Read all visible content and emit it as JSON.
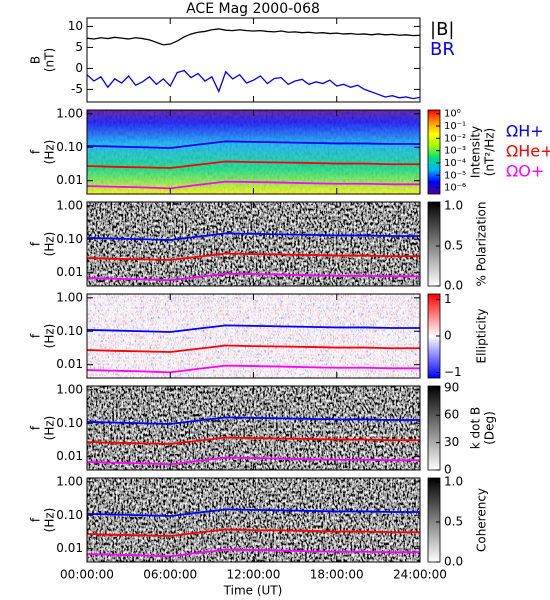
{
  "chart_data": [
    {
      "type": "line",
      "title": "ACE Mag 2000-068",
      "ylabel": "B",
      "ylabel_unit": "(nT)",
      "x": [
        0,
        0.5,
        1,
        1.5,
        2,
        2.5,
        3,
        3.5,
        4,
        4.5,
        5,
        5.5,
        6,
        6.5,
        7,
        7.5,
        8,
        8.5,
        9,
        9.5,
        10,
        10.5,
        11,
        11.5,
        12,
        12.5,
        13,
        13.5,
        14,
        14.5,
        15,
        15.5,
        16,
        16.5,
        17,
        17.5,
        18,
        18.5,
        19,
        19.5,
        20,
        20.5,
        21,
        21.5,
        22,
        22.5,
        23,
        23.5,
        24
      ],
      "series": [
        {
          "name": "|B|",
          "color": "#000000",
          "values": [
            7.2,
            7.0,
            7.3,
            7.1,
            7.4,
            7.2,
            7.0,
            7.3,
            7.1,
            6.8,
            6.2,
            5.6,
            5.8,
            6.5,
            7.5,
            8.2,
            8.6,
            8.8,
            9.2,
            9.4,
            9.1,
            9.0,
            9.2,
            9.0,
            8.9,
            9.0,
            8.8,
            8.7,
            8.9,
            8.6,
            8.7,
            8.5,
            8.6,
            8.4,
            8.5,
            8.3,
            8.4,
            8.2,
            8.3,
            8.1,
            8.2,
            8.0,
            8.2,
            8.0,
            8.1,
            7.9,
            8.0,
            7.8,
            7.9
          ]
        },
        {
          "name": "BR",
          "color": "#0000ff",
          "values": [
            -1.5,
            -3.0,
            -2.0,
            -4.5,
            -2.5,
            -3.5,
            -1.8,
            -4.0,
            -3.2,
            -2.0,
            -3.8,
            -2.5,
            -4.2,
            -1.0,
            -0.5,
            -2.2,
            -1.2,
            -3.0,
            -2.0,
            -5.5,
            -0.8,
            -2.5,
            -1.5,
            -3.5,
            -2.8,
            -1.8,
            -3.6,
            -2.4,
            -2.2,
            -3.8,
            -3.0,
            -2.6,
            -3.8,
            -3.2,
            -3.6,
            -2.8,
            -4.2,
            -3.8,
            -4.5,
            -4.0,
            -5.0,
            -5.6,
            -6.2,
            -6.8,
            -6.5,
            -7.0,
            -6.8,
            -7.2,
            -6.9
          ]
        }
      ],
      "xlim": [
        0,
        24
      ],
      "xticks": [
        0,
        6,
        12,
        18,
        24
      ],
      "ylim": [
        -8,
        12
      ],
      "yticks": [
        -5,
        0,
        5,
        10
      ]
    },
    {
      "type": "spectrogram",
      "ylabel": "f",
      "ylabel_unit": "(Hz)",
      "log_y": true,
      "texture": "intensity",
      "x": [
        0,
        2,
        4,
        6,
        8,
        10,
        12,
        14,
        16,
        18,
        20,
        22,
        24
      ],
      "series": [
        {
          "name": "ΩH+",
          "color": "#0000ff",
          "values": [
            0.11,
            0.105,
            0.1,
            0.095,
            0.12,
            0.15,
            0.145,
            0.14,
            0.135,
            0.13,
            0.13,
            0.125,
            0.125
          ]
        },
        {
          "name": "ΩHe+",
          "color": "#ff0000",
          "values": [
            0.0275,
            0.026,
            0.025,
            0.024,
            0.03,
            0.0375,
            0.036,
            0.035,
            0.034,
            0.0325,
            0.0325,
            0.031,
            0.031
          ]
        },
        {
          "name": "ΩO+",
          "color": "#ff00ff",
          "values": [
            0.0069,
            0.0066,
            0.0063,
            0.0059,
            0.0075,
            0.0094,
            0.0091,
            0.0088,
            0.0084,
            0.0081,
            0.0081,
            0.0078,
            0.0078
          ]
        }
      ],
      "xlim": [
        0,
        24
      ],
      "xticks": [
        0,
        6,
        12,
        18,
        24
      ],
      "ylim": [
        0.004,
        1.3
      ],
      "yticks": [
        {
          "value": 0.01,
          "label": "0.01"
        },
        {
          "value": 0.1,
          "label": "0.10"
        },
        {
          "value": 1,
          "label": "1.00"
        }
      ],
      "colorbar": {
        "label": "Intensity",
        "label_unit": "(nT²/Hz)",
        "log": true,
        "lim": [
          3e-07,
          2
        ],
        "colors": [
          "#50009a",
          "#0000ff",
          "#00b0ff",
          "#00e080",
          "#a0ff00",
          "#ffff00",
          "#ff9000",
          "#ff0000"
        ],
        "ticks": [
          {
            "value": 1,
            "label": "10⁰"
          },
          {
            "value": 0.1,
            "label": "10⁻¹"
          },
          {
            "value": 0.01,
            "label": "10⁻²"
          },
          {
            "value": 0.001,
            "label": "10⁻³"
          },
          {
            "value": 0.0001,
            "label": "10⁻⁴"
          },
          {
            "value": 1e-05,
            "label": "10⁻⁵"
          },
          {
            "value": 1e-06,
            "label": "10⁻⁶"
          }
        ]
      }
    },
    {
      "type": "spectrogram",
      "ylabel": "f",
      "ylabel_unit": "(Hz)",
      "log_y": true,
      "texture": "gray",
      "x": [
        0,
        2,
        4,
        6,
        8,
        10,
        12,
        14,
        16,
        18,
        20,
        22,
        24
      ],
      "series": [
        {
          "color": "#0000ff",
          "values": [
            0.11,
            0.105,
            0.1,
            0.095,
            0.12,
            0.15,
            0.145,
            0.14,
            0.135,
            0.13,
            0.13,
            0.125,
            0.125
          ]
        },
        {
          "color": "#ff0000",
          "values": [
            0.0275,
            0.026,
            0.025,
            0.024,
            0.03,
            0.0375,
            0.036,
            0.035,
            0.034,
            0.0325,
            0.0325,
            0.031,
            0.031
          ]
        },
        {
          "color": "#ff00ff",
          "values": [
            0.0069,
            0.0066,
            0.0063,
            0.0059,
            0.0075,
            0.0094,
            0.0091,
            0.0088,
            0.0084,
            0.0081,
            0.0081,
            0.0078,
            0.0078
          ]
        }
      ],
      "xlim": [
        0,
        24
      ],
      "xticks": [
        0,
        6,
        12,
        18,
        24
      ],
      "ylim": [
        0.004,
        1.3
      ],
      "yticks": [
        {
          "value": 0.01,
          "label": "0.01"
        },
        {
          "value": 0.1,
          "label": "0.10"
        },
        {
          "value": 1,
          "label": "1.00"
        }
      ],
      "colorbar": {
        "label": "% Polarization",
        "lim": [
          0,
          1.05
        ],
        "colors": [
          "#ffffff",
          "#000000"
        ],
        "ticks": [
          {
            "value": 0,
            "label": "0.0"
          },
          {
            "value": 0.5,
            "label": "0.5"
          },
          {
            "value": 1,
            "label": "1.0"
          }
        ]
      }
    },
    {
      "type": "spectrogram",
      "ylabel": "f",
      "ylabel_unit": "(Hz)",
      "log_y": true,
      "texture": "redblue",
      "x": [
        0,
        2,
        4,
        6,
        8,
        10,
        12,
        14,
        16,
        18,
        20,
        22,
        24
      ],
      "series": [
        {
          "color": "#0000ff",
          "values": [
            0.11,
            0.105,
            0.1,
            0.095,
            0.12,
            0.15,
            0.145,
            0.14,
            0.135,
            0.13,
            0.13,
            0.125,
            0.125
          ]
        },
        {
          "color": "#ff0000",
          "values": [
            0.0275,
            0.026,
            0.025,
            0.024,
            0.03,
            0.0375,
            0.036,
            0.035,
            0.034,
            0.0325,
            0.0325,
            0.031,
            0.031
          ]
        },
        {
          "color": "#ff00ff",
          "values": [
            0.0069,
            0.0066,
            0.0063,
            0.0059,
            0.0075,
            0.0094,
            0.0091,
            0.0088,
            0.0084,
            0.0081,
            0.0081,
            0.0078,
            0.0078
          ]
        }
      ],
      "xlim": [
        0,
        24
      ],
      "xticks": [
        0,
        6,
        12,
        18,
        24
      ],
      "ylim": [
        0.004,
        1.3
      ],
      "yticks": [
        {
          "value": 0.01,
          "label": "0.01"
        },
        {
          "value": 0.1,
          "label": "0.10"
        },
        {
          "value": 1,
          "label": "1.00"
        }
      ],
      "colorbar": {
        "label": "Ellipticity",
        "lim": [
          -1.15,
          1.15
        ],
        "colors": [
          "#0000ff",
          "#ffffff",
          "#ff0000"
        ],
        "ticks": [
          {
            "value": -1,
            "label": "−1"
          },
          0,
          1
        ]
      }
    },
    {
      "type": "spectrogram",
      "ylabel": "f",
      "ylabel_unit": "(Hz)",
      "log_y": true,
      "texture": "gray",
      "x": [
        0,
        2,
        4,
        6,
        8,
        10,
        12,
        14,
        16,
        18,
        20,
        22,
        24
      ],
      "series": [
        {
          "color": "#0000ff",
          "values": [
            0.11,
            0.105,
            0.1,
            0.095,
            0.12,
            0.15,
            0.145,
            0.14,
            0.135,
            0.13,
            0.13,
            0.125,
            0.125
          ]
        },
        {
          "color": "#ff0000",
          "values": [
            0.0275,
            0.026,
            0.025,
            0.024,
            0.03,
            0.0375,
            0.036,
            0.035,
            0.034,
            0.0325,
            0.0325,
            0.031,
            0.031
          ]
        },
        {
          "color": "#ff00ff",
          "values": [
            0.0069,
            0.0066,
            0.0063,
            0.0059,
            0.0075,
            0.0094,
            0.0091,
            0.0088,
            0.0084,
            0.0081,
            0.0081,
            0.0078,
            0.0078
          ]
        }
      ],
      "xlim": [
        0,
        24
      ],
      "xticks": [
        0,
        6,
        12,
        18,
        24
      ],
      "ylim": [
        0.004,
        1.3
      ],
      "yticks": [
        {
          "value": 0.01,
          "label": "0.01"
        },
        {
          "value": 0.1,
          "label": "0.10"
        },
        {
          "value": 1,
          "label": "1.00"
        }
      ],
      "colorbar": {
        "label": "k dot B",
        "label_unit": "(Deg)",
        "lim": [
          0,
          92
        ],
        "colors": [
          "#ffffff",
          "#000000"
        ],
        "ticks": [
          0,
          30,
          60,
          90
        ]
      }
    },
    {
      "type": "spectrogram",
      "ylabel": "f",
      "ylabel_unit": "(Hz)",
      "log_y": true,
      "texture": "gray",
      "x": [
        0,
        2,
        4,
        6,
        8,
        10,
        12,
        14,
        16,
        18,
        20,
        22,
        24
      ],
      "series": [
        {
          "color": "#0000ff",
          "values": [
            0.11,
            0.105,
            0.1,
            0.095,
            0.12,
            0.15,
            0.145,
            0.14,
            0.135,
            0.13,
            0.13,
            0.125,
            0.125
          ]
        },
        {
          "color": "#ff0000",
          "values": [
            0.0275,
            0.026,
            0.025,
            0.024,
            0.03,
            0.0375,
            0.036,
            0.035,
            0.034,
            0.0325,
            0.0325,
            0.031,
            0.031
          ]
        },
        {
          "color": "#ff00ff",
          "values": [
            0.0069,
            0.0066,
            0.0063,
            0.0059,
            0.0075,
            0.0094,
            0.0091,
            0.0088,
            0.0084,
            0.0081,
            0.0081,
            0.0078,
            0.0078
          ]
        }
      ],
      "xlim": [
        0,
        24
      ],
      "xlabel": "Time (UT)",
      "xticks": [
        {
          "value": 0,
          "label": "00:00:00"
        },
        {
          "value": 6,
          "label": "06:00:00"
        },
        {
          "value": 12,
          "label": "12:00:00"
        },
        {
          "value": 18,
          "label": "18:00:00"
        },
        {
          "value": 24,
          "label": "24:00:00"
        }
      ],
      "ylim": [
        0.004,
        1.3
      ],
      "yticks": [
        {
          "value": 0.01,
          "label": "0.01"
        },
        {
          "value": 0.1,
          "label": "0.10"
        },
        {
          "value": 1,
          "label": "1.00"
        }
      ],
      "colorbar": {
        "label": "Coherency",
        "lim": [
          0,
          1.05
        ],
        "colors": [
          "#ffffff",
          "#000000"
        ],
        "ticks": [
          {
            "value": 0,
            "label": "0.0"
          },
          {
            "value": 0.5,
            "label": "0.5"
          },
          {
            "value": 1,
            "label": "1.0"
          }
        ]
      }
    }
  ]
}
